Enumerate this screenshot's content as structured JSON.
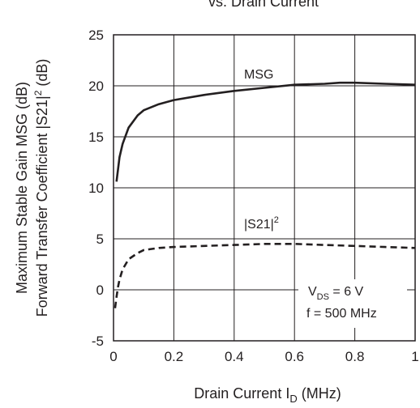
{
  "chart_data": {
    "type": "line",
    "title_partial": "vs. Drain Current",
    "xlabel": {
      "main": "Drain Current  I",
      "sub": "D",
      "tail": " (MHz)"
    },
    "ylabel_line1": "Maximum Stable Gain MSG (dB)",
    "ylabel_line2": {
      "main": "Forward Transfer Coefficient  |S21|",
      "sup": "2",
      "tail": " (dB)"
    },
    "xlim": [
      0,
      1
    ],
    "ylim": [
      -5,
      25
    ],
    "grid": true,
    "x_ticks": [
      {
        "value": 0,
        "label": "0"
      },
      {
        "value": 0.2,
        "label": "0.2"
      },
      {
        "value": 0.4,
        "label": "0.4"
      },
      {
        "value": 0.6,
        "label": "0.6"
      },
      {
        "value": 0.8,
        "label": "0.8"
      },
      {
        "value": 1,
        "label": "1"
      }
    ],
    "y_ticks": [
      {
        "value": -5,
        "label": "-5"
      },
      {
        "value": 0,
        "label": "0"
      },
      {
        "value": 5,
        "label": "5"
      },
      {
        "value": 10,
        "label": "10"
      },
      {
        "value": 15,
        "label": "15"
      },
      {
        "value": 20,
        "label": "20"
      },
      {
        "value": 25,
        "label": "25"
      }
    ],
    "series": [
      {
        "name": "MSG",
        "style": "solid",
        "x": [
          0.01,
          0.02,
          0.03,
          0.05,
          0.08,
          0.1,
          0.15,
          0.2,
          0.3,
          0.4,
          0.5,
          0.6,
          0.7,
          0.75,
          0.8,
          0.9,
          1.0
        ],
        "y": [
          10.6,
          13.0,
          14.3,
          15.9,
          17.1,
          17.6,
          18.2,
          18.6,
          19.1,
          19.5,
          19.8,
          20.1,
          20.2,
          20.3,
          20.3,
          20.2,
          20.1
        ]
      },
      {
        "name": "|S21|²",
        "style": "dashed",
        "x": [
          0.005,
          0.01,
          0.015,
          0.02,
          0.03,
          0.05,
          0.08,
          0.1,
          0.15,
          0.2,
          0.3,
          0.4,
          0.5,
          0.6,
          0.7,
          0.8,
          0.9,
          1.0
        ],
        "y": [
          -1.8,
          -0.7,
          0.3,
          1.0,
          2.0,
          3.0,
          3.6,
          3.9,
          4.1,
          4.2,
          4.3,
          4.4,
          4.5,
          4.5,
          4.4,
          4.3,
          4.2,
          4.1
        ]
      }
    ],
    "annotations": {
      "msg_label": "MSG",
      "s21_label": {
        "main": "|S21|",
        "sup": "2"
      },
      "vds": {
        "main": "V",
        "sub": "DS",
        "tail": " = 6 V"
      },
      "freq": "f = 500 MHz"
    }
  }
}
